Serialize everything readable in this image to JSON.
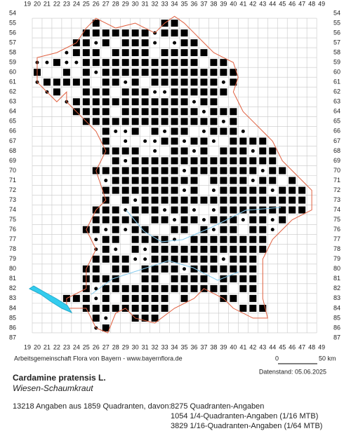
{
  "map": {
    "columns": [
      19,
      20,
      21,
      22,
      23,
      24,
      25,
      26,
      27,
      28,
      29,
      30,
      31,
      32,
      33,
      34,
      35,
      36,
      37,
      38,
      39,
      40,
      41,
      42,
      43,
      44,
      45,
      46,
      47,
      48,
      49
    ],
    "rows": [
      54,
      55,
      56,
      57,
      58,
      59,
      60,
      61,
      62,
      63,
      64,
      65,
      66,
      67,
      68,
      69,
      70,
      71,
      72,
      73,
      74,
      75,
      76,
      77,
      78,
      79,
      80,
      81,
      82,
      83,
      84,
      85,
      86,
      87
    ],
    "scale": {
      "start": "0",
      "end": "50 km"
    }
  },
  "footer": {
    "credit": "Arbeitsgemeinschaft Flora von Bayern - www.bayernflora.de",
    "date": "Datenstand: 05.06.2025",
    "species": "Cardamine pratensis L.",
    "common_name": "Wiesen-Schaumkraut",
    "summary": "13218 Angaben aus 1859 Quadranten, davon:",
    "details": [
      "8275 Quadranten-Angaben",
      "1054 1/4-Quadranten-Angaben (1/16 MTB)",
      "3829 1/16-Quadranten-Angaben (1/64 MTB)"
    ]
  }
}
